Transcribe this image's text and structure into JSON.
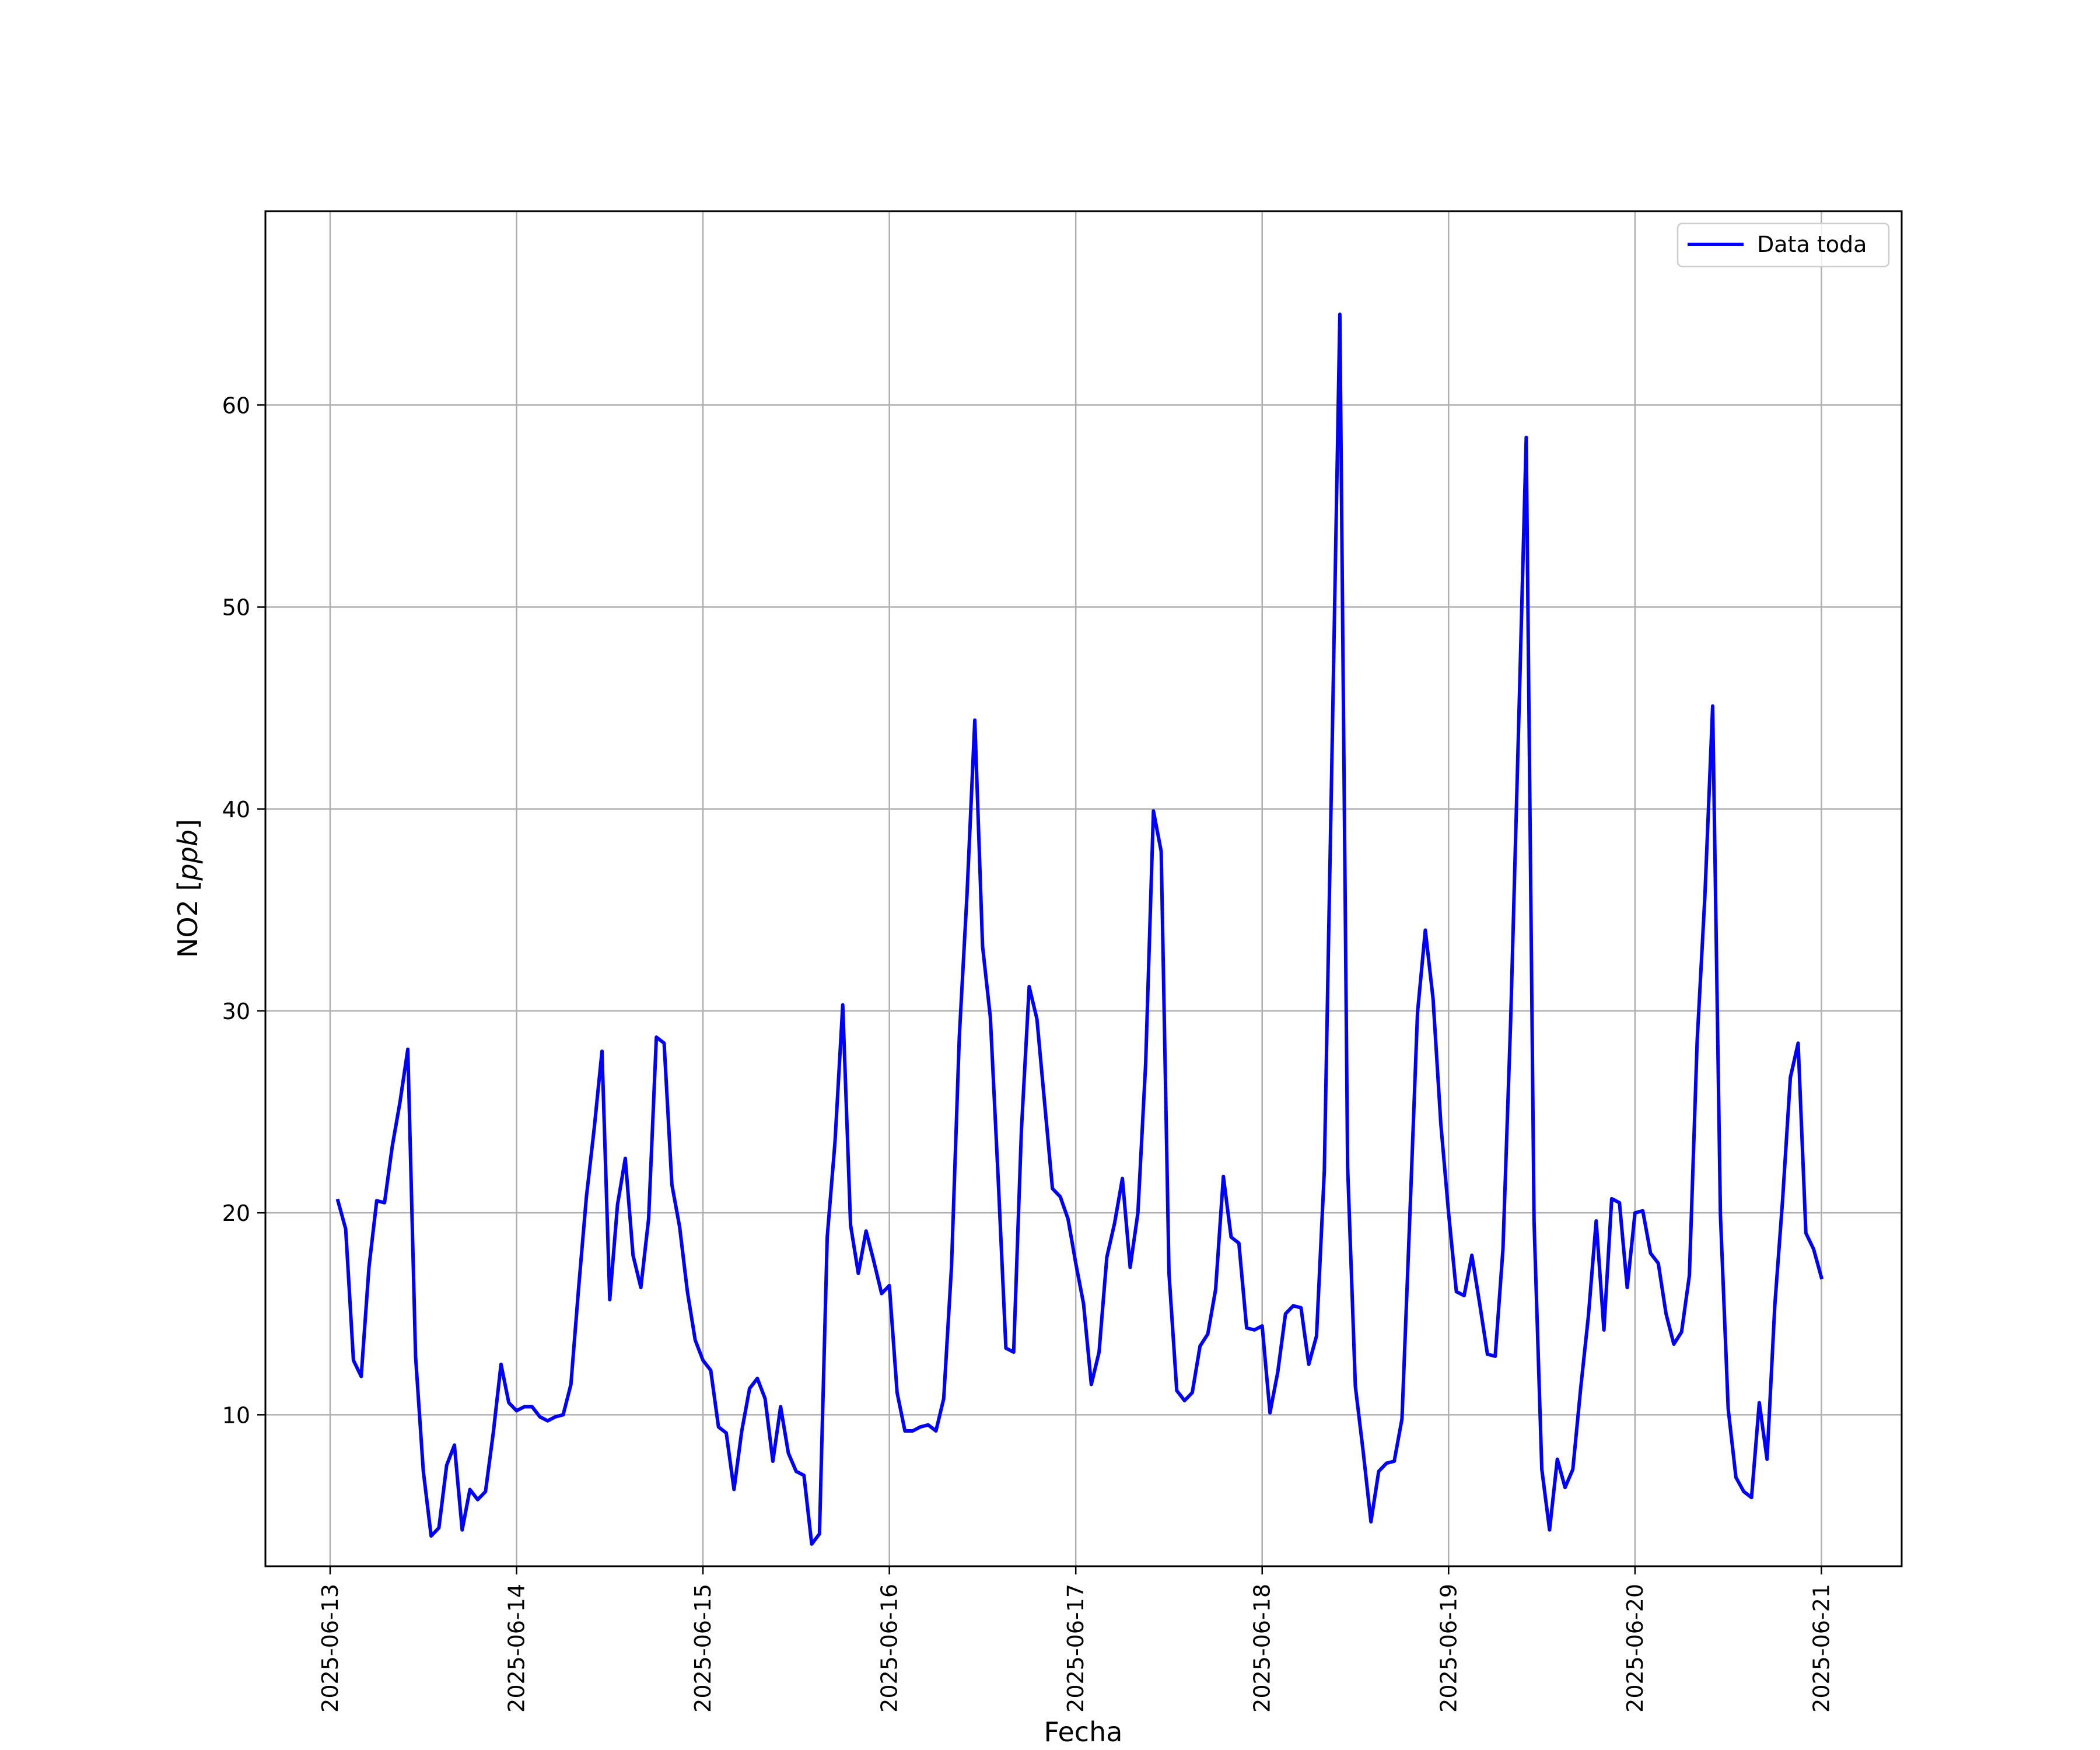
{
  "chart_data": {
    "type": "line",
    "xlabel": "Fecha",
    "ylabel": "NO2 [ppb]",
    "ylabel_parts": {
      "prefix": "NO2 [",
      "italic": "ppb",
      "suffix": "]"
    },
    "x_tick_labels": [
      "2025-06-13",
      "2025-06-14",
      "2025-06-15",
      "2025-06-16",
      "2025-06-17",
      "2025-06-18",
      "2025-06-19",
      "2025-06-20",
      "2025-06-21"
    ],
    "y_tick_labels": [
      "10",
      "20",
      "30",
      "40",
      "50",
      "60"
    ],
    "y_ticks": [
      10,
      20,
      30,
      40,
      50,
      60
    ],
    "xlim": [
      "2025-06-12T15:40",
      "2025-06-21T10:20"
    ],
    "ylim": [
      2.5,
      69.6
    ],
    "grid": true,
    "legend_position": "top-right",
    "series_color": "#0000ff",
    "series": [
      {
        "name": "Data toda",
        "start": "2025-06-13T01:00",
        "interval_minutes": 60,
        "values": [
          20.6,
          19.2,
          12.7,
          11.9,
          17.3,
          20.6,
          20.5,
          23.3,
          25.5,
          28.1,
          12.9,
          7.2,
          4.0,
          4.4,
          7.5,
          8.5,
          4.3,
          6.3,
          5.8,
          6.2,
          9.1,
          12.5,
          10.6,
          10.2,
          10.4,
          10.4,
          9.9,
          9.7,
          9.9,
          10.0,
          11.5,
          16.3,
          20.8,
          24.2,
          28.0,
          15.7,
          20.4,
          22.7,
          17.9,
          16.3,
          19.7,
          28.7,
          28.4,
          21.4,
          19.3,
          16.1,
          13.7,
          12.7,
          12.2,
          9.4,
          9.1,
          6.3,
          9.2,
          11.3,
          11.8,
          10.8,
          7.7,
          10.4,
          8.1,
          7.2,
          7.0,
          3.6,
          4.1,
          18.8,
          23.5,
          30.3,
          19.4,
          17.0,
          19.1,
          17.6,
          16.0,
          16.4,
          11.1,
          9.2,
          9.2,
          9.4,
          9.5,
          9.2,
          10.8,
          17.3,
          28.7,
          35.8,
          44.4,
          33.2,
          29.7,
          21.8,
          13.3,
          13.1,
          24.1,
          31.2,
          29.6,
          25.4,
          21.2,
          20.8,
          19.7,
          17.5,
          15.5,
          11.5,
          13.1,
          17.8,
          19.5,
          21.7,
          17.3,
          20.0,
          27.4,
          39.9,
          37.9,
          17.0,
          11.2,
          10.7,
          11.1,
          13.4,
          14.0,
          16.2,
          21.8,
          18.8,
          18.5,
          14.3,
          14.2,
          14.4,
          10.1,
          12.1,
          15.0,
          15.4,
          15.3,
          12.5,
          13.9,
          22.1,
          43.0,
          64.5,
          22.3,
          11.4,
          8.2,
          4.7,
          7.2,
          7.6,
          7.7,
          9.8,
          19.7,
          29.9,
          34.0,
          30.6,
          24.4,
          20.0,
          16.1,
          15.9,
          17.9,
          15.5,
          13.0,
          12.9,
          18.2,
          29.6,
          43.8,
          58.4,
          19.6,
          7.3,
          4.3,
          7.8,
          6.4,
          7.3,
          11.3,
          14.9,
          19.6,
          14.2,
          20.7,
          20.5,
          16.3,
          20.0,
          20.1,
          18.0,
          17.5,
          15.0,
          13.5,
          14.1,
          16.9,
          28.5,
          35.7,
          45.1,
          19.9,
          10.3,
          6.9,
          6.2,
          5.9,
          10.6,
          7.8,
          15.4,
          20.6,
          26.7,
          28.4,
          19.0,
          18.2,
          16.8
        ]
      }
    ]
  }
}
